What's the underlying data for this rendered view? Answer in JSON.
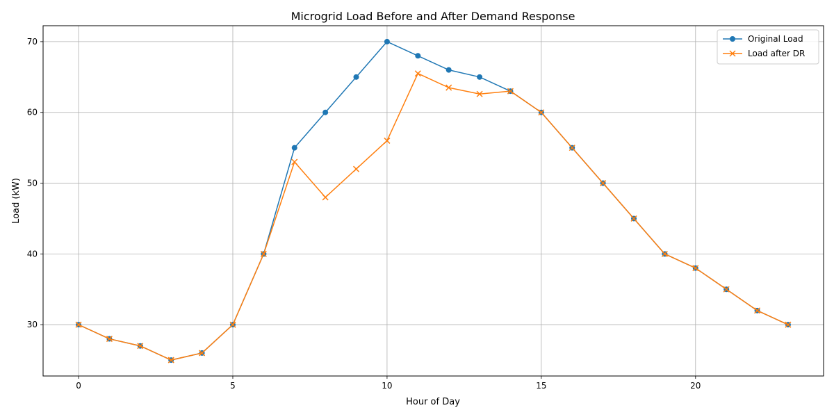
{
  "chart_data": {
    "type": "line",
    "title": "Microgrid Load Before and After Demand Response",
    "xlabel": "Hour of Day",
    "ylabel": "Load (kW)",
    "x": [
      0,
      1,
      2,
      3,
      4,
      5,
      6,
      7,
      8,
      9,
      10,
      11,
      12,
      13,
      14,
      15,
      16,
      17,
      18,
      19,
      20,
      21,
      22,
      23
    ],
    "xlim": [
      -1.15,
      24.15
    ],
    "ylim": [
      22.75,
      72.25
    ],
    "xticks": [
      0,
      5,
      10,
      15,
      20
    ],
    "yticks": [
      30,
      40,
      50,
      60,
      70
    ],
    "grid": true,
    "legend_position": "top-right",
    "series": [
      {
        "name": "Original Load",
        "color": "#1f77b4",
        "marker": "circle",
        "values": [
          30,
          28,
          27,
          25,
          26,
          30,
          40,
          55,
          60,
          65,
          70,
          68,
          66,
          65,
          63,
          60,
          55,
          50,
          45,
          40,
          38,
          35,
          32,
          30
        ]
      },
      {
        "name": "Load after DR",
        "color": "#ff7f0e",
        "marker": "x",
        "values": [
          30,
          28,
          27,
          25,
          26,
          30,
          40,
          53,
          48,
          52,
          56,
          65.5,
          63.5,
          62.6,
          63,
          60,
          55,
          50,
          45,
          40,
          38,
          35,
          32,
          30
        ]
      }
    ]
  }
}
